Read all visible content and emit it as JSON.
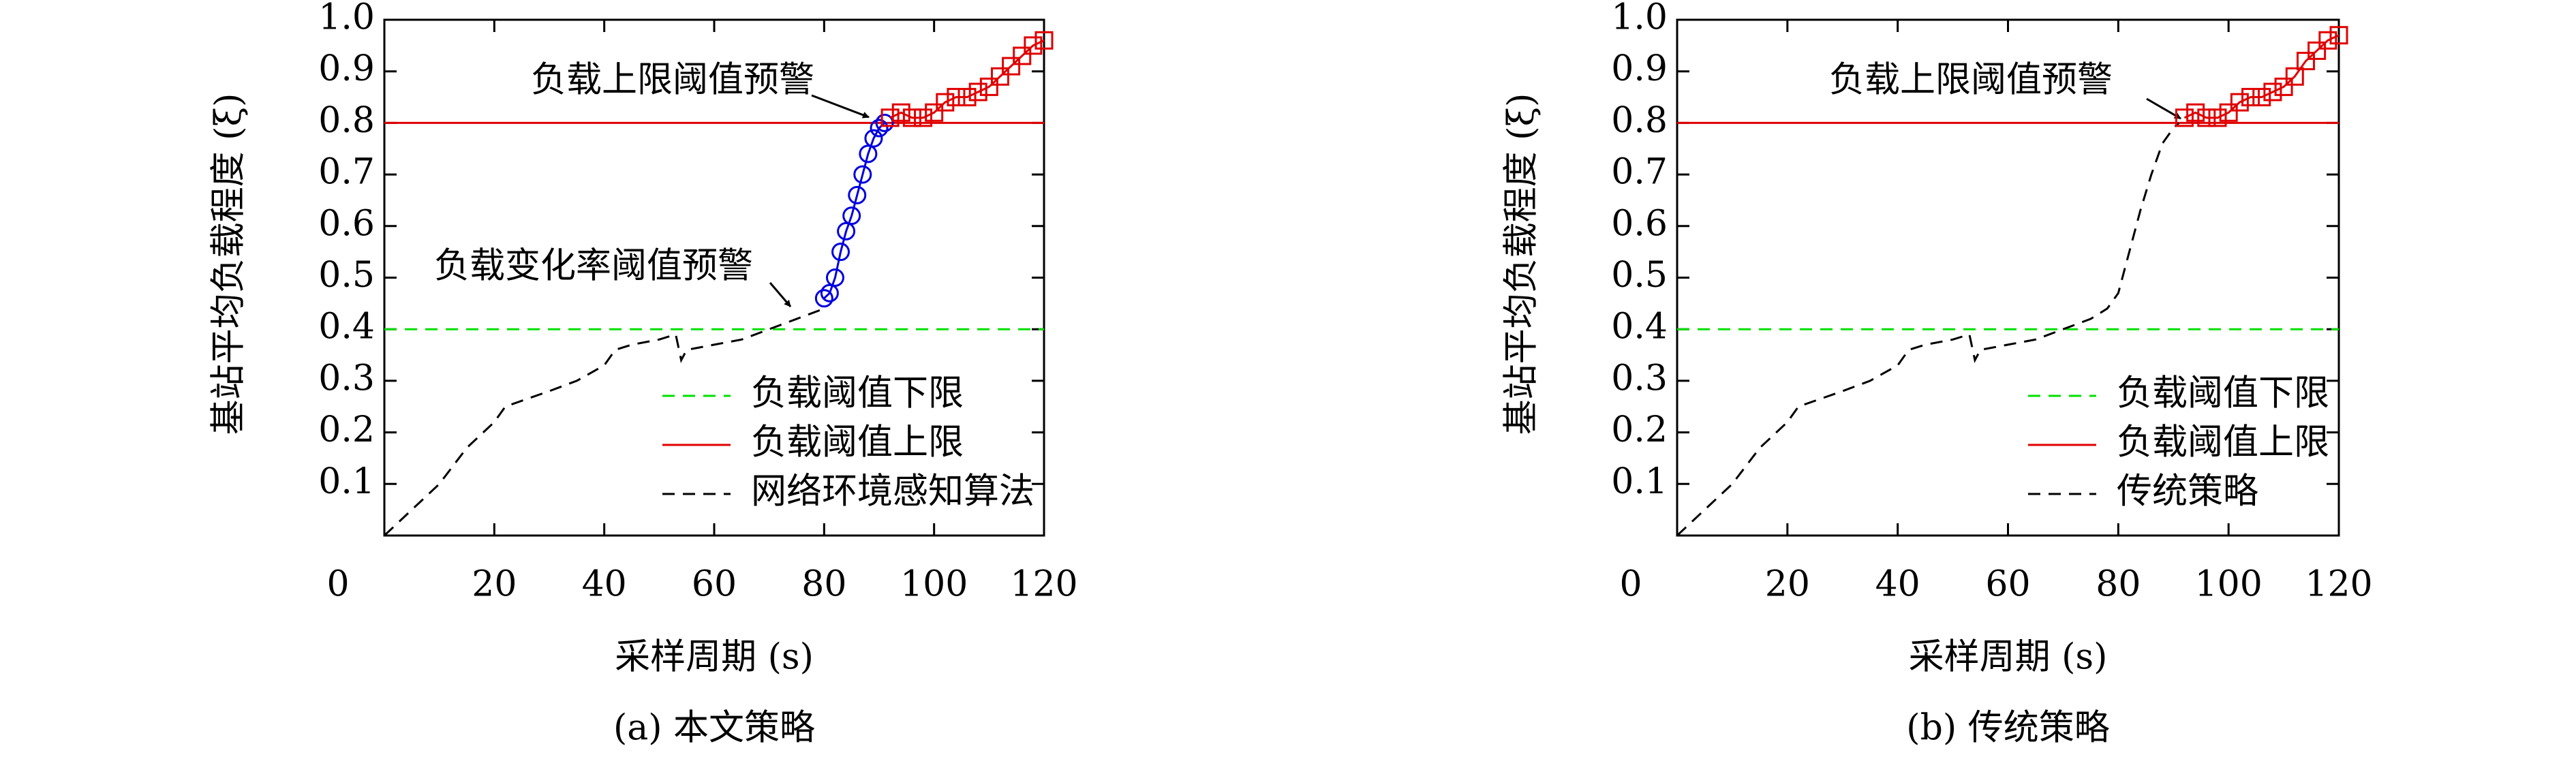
{
  "chart_data": [
    {
      "type": "line",
      "caption": "(a) 本文策略",
      "xlabel": "采样周期 (s)",
      "ylabel": "基站平均负载程度 (ξ)",
      "xlim": [
        0,
        120
      ],
      "ylim": [
        0,
        1
      ],
      "xticks": [
        0,
        20,
        40,
        60,
        80,
        100,
        120
      ],
      "yticks": [
        0.1,
        0.2,
        0.3,
        0.4,
        0.5,
        0.6,
        0.7,
        0.8,
        0.9,
        {
          "value": 1,
          "label": "1.0"
        }
      ],
      "annotations": [
        "负载上限阈值预警",
        "负载变化率阈值预警"
      ],
      "series": [
        {
          "name": "负载阈值下限",
          "color": "#00e000",
          "style": "dashed",
          "x": [
            0,
            120
          ],
          "values": [
            0.4,
            0.4
          ]
        },
        {
          "name": "负载阈值上限",
          "color": "#e00000",
          "style": "solid",
          "x": [
            0,
            120
          ],
          "values": [
            0.8,
            0.8
          ]
        },
        {
          "name": "网络环境感知算法",
          "color": "#000000",
          "style": "dashed",
          "x": [
            0,
            5,
            10,
            15,
            20,
            22,
            30,
            35,
            40,
            42,
            45,
            50,
            53,
            54,
            55,
            60,
            65,
            70,
            75,
            80
          ],
          "values": [
            0,
            0.05,
            0.1,
            0.17,
            0.22,
            0.25,
            0.28,
            0.3,
            0.33,
            0.36,
            0.37,
            0.38,
            0.39,
            0.34,
            0.36,
            0.37,
            0.38,
            0.4,
            0.42,
            0.44
          ]
        },
        {
          "color": "#0000e0",
          "style": "solid",
          "marker": "circle",
          "x": [
            80,
            81,
            82,
            83,
            84,
            85,
            86,
            87,
            88,
            89,
            90,
            91
          ],
          "values": [
            0.46,
            0.47,
            0.5,
            0.55,
            0.59,
            0.62,
            0.66,
            0.7,
            0.74,
            0.77,
            0.79,
            0.8
          ]
        },
        {
          "color": "#e00000",
          "style": "solid",
          "marker": "square",
          "x": [
            92,
            94,
            96,
            98,
            100,
            102,
            104,
            106,
            108,
            110,
            112,
            114,
            116,
            118,
            120
          ],
          "values": [
            0.81,
            0.82,
            0.81,
            0.81,
            0.82,
            0.84,
            0.85,
            0.85,
            0.86,
            0.87,
            0.89,
            0.91,
            0.93,
            0.95,
            0.96
          ]
        }
      ]
    },
    {
      "type": "line",
      "caption": "(b) 传统策略",
      "xlabel": "采样周期 (s)",
      "ylabel": "基站平均负载程度 (ξ)",
      "xlim": [
        0,
        120
      ],
      "ylim": [
        0,
        1
      ],
      "xticks": [
        0,
        20,
        40,
        60,
        80,
        100,
        120
      ],
      "yticks": [
        0.1,
        0.2,
        0.3,
        0.4,
        0.5,
        0.6,
        0.7,
        0.8,
        0.9,
        {
          "value": 1,
          "label": "1.0"
        }
      ],
      "annotations": [
        "负载上限阈值预警"
      ],
      "series": [
        {
          "name": "负载阈值下限",
          "color": "#00e000",
          "style": "dashed",
          "x": [
            0,
            120
          ],
          "values": [
            0.4,
            0.4
          ]
        },
        {
          "name": "负载阈值上限",
          "color": "#e00000",
          "style": "solid",
          "x": [
            0,
            120
          ],
          "values": [
            0.8,
            0.8
          ]
        },
        {
          "name": "传统策略",
          "color": "#000000",
          "style": "dashed",
          "x": [
            0,
            5,
            10,
            15,
            20,
            22,
            30,
            35,
            40,
            42,
            45,
            50,
            53,
            54,
            55,
            60,
            65,
            70,
            75,
            78,
            80,
            82,
            84,
            86,
            88,
            90,
            91
          ],
          "values": [
            0,
            0.05,
            0.1,
            0.17,
            0.22,
            0.25,
            0.28,
            0.3,
            0.33,
            0.36,
            0.37,
            0.38,
            0.39,
            0.34,
            0.36,
            0.37,
            0.38,
            0.4,
            0.42,
            0.44,
            0.47,
            0.55,
            0.63,
            0.7,
            0.76,
            0.79,
            0.8
          ]
        },
        {
          "color": "#e00000",
          "style": "solid",
          "marker": "square",
          "x": [
            92,
            94,
            96,
            98,
            100,
            102,
            104,
            106,
            108,
            110,
            112,
            114,
            116,
            118,
            120
          ],
          "values": [
            0.81,
            0.82,
            0.81,
            0.81,
            0.82,
            0.84,
            0.85,
            0.85,
            0.86,
            0.87,
            0.89,
            0.92,
            0.94,
            0.96,
            0.97
          ]
        }
      ]
    }
  ]
}
